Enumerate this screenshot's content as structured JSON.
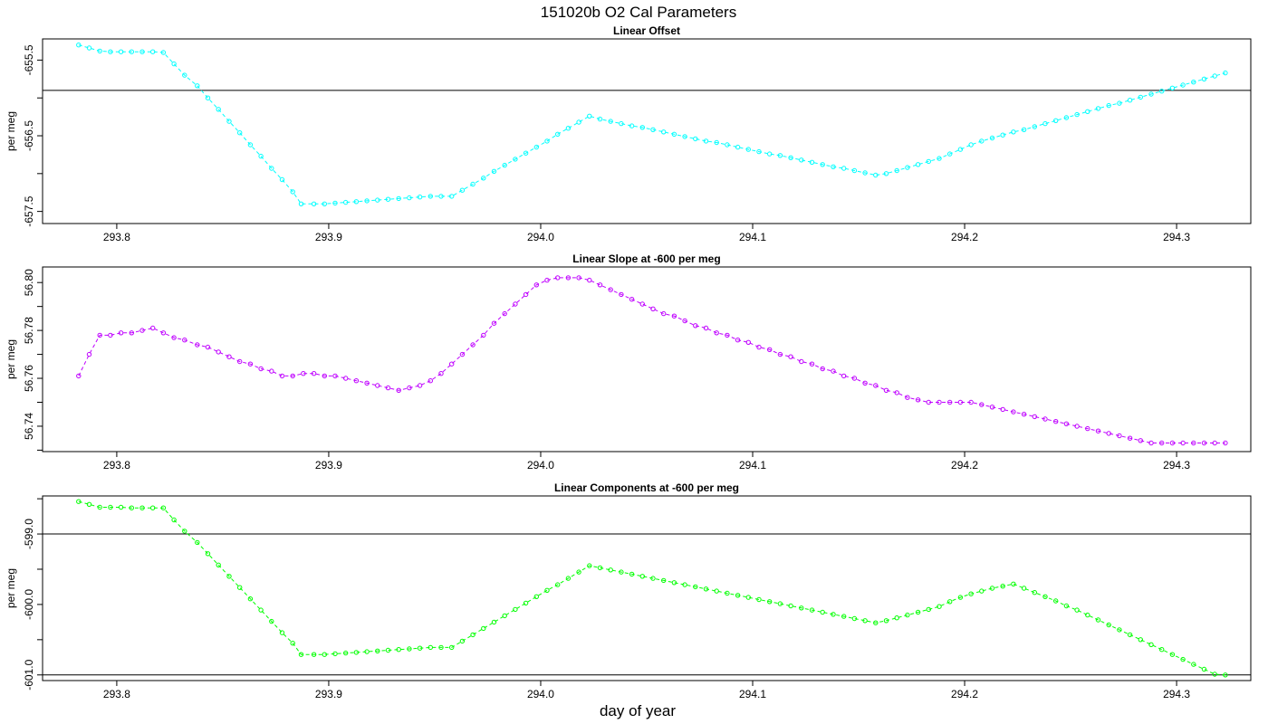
{
  "title": "151020b   O2 Cal Parameters",
  "xlabel": "day of year",
  "chart_data": [
    {
      "type": "line",
      "title": "Linear Offset",
      "ylabel": "per meg",
      "color": "#00ffff",
      "xlim": [
        293.765,
        293.335
      ],
      "ylim": [
        -657.66,
        -655.22
      ],
      "x_ticks": [
        "293.8",
        "293.9",
        "294.0",
        "294.1",
        "294.2",
        "294.3"
      ],
      "y_ticks": [
        "-655.5",
        "-656.5",
        "-657.5"
      ],
      "ref_line": -655.9,
      "series": [
        {
          "x": [
            293.782,
            293.787,
            293.792,
            293.797,
            293.802,
            293.807,
            293.812,
            293.817,
            293.822,
            293.827,
            293.832,
            293.838,
            293.843,
            293.848,
            293.853,
            293.858,
            293.863,
            293.868,
            293.873,
            293.878,
            293.883,
            293.887,
            293.893,
            293.898,
            293.903,
            293.908,
            293.913,
            293.918,
            293.923,
            293.928,
            293.933,
            293.938,
            293.943,
            293.948,
            293.953,
            293.958,
            293.963,
            293.968,
            293.973,
            293.978,
            293.983,
            293.988,
            293.993,
            293.998,
            294.003,
            294.008,
            294.013,
            294.018,
            294.023,
            294.028,
            294.033,
            294.038,
            294.043,
            294.048,
            294.053,
            294.058,
            294.063,
            294.068,
            294.073,
            294.078,
            294.083,
            294.088,
            294.093,
            294.098,
            294.103,
            294.108,
            294.113,
            294.118,
            294.123,
            294.128,
            294.133,
            294.138,
            294.143,
            294.148,
            294.153,
            294.158,
            294.163,
            294.168,
            294.173,
            294.178,
            294.183,
            294.188,
            294.193,
            294.198,
            294.203,
            294.208,
            294.213,
            294.218,
            294.223,
            294.228,
            294.233,
            294.238,
            294.243,
            294.248,
            294.253,
            294.258,
            294.263,
            294.268,
            294.273,
            294.278,
            294.283,
            294.288,
            294.293,
            294.298,
            294.303,
            294.308,
            294.313,
            294.318,
            294.323
          ],
          "y": [
            -655.3,
            -655.34,
            -655.38,
            -655.39,
            -655.39,
            -655.39,
            -655.39,
            -655.39,
            -655.4,
            -655.55,
            -655.7,
            -655.84,
            -656.0,
            -656.15,
            -656.31,
            -656.46,
            -656.62,
            -656.77,
            -656.93,
            -657.08,
            -657.24,
            -657.4,
            -657.4,
            -657.4,
            -657.39,
            -657.38,
            -657.37,
            -657.36,
            -657.35,
            -657.34,
            -657.33,
            -657.32,
            -657.31,
            -657.3,
            -657.3,
            -657.3,
            -657.22,
            -657.14,
            -657.06,
            -656.97,
            -656.89,
            -656.81,
            -656.73,
            -656.65,
            -656.57,
            -656.48,
            -656.4,
            -656.32,
            -656.24,
            -656.28,
            -656.31,
            -656.34,
            -656.37,
            -656.39,
            -656.42,
            -656.45,
            -656.48,
            -656.51,
            -656.54,
            -656.57,
            -656.59,
            -656.62,
            -656.65,
            -656.68,
            -656.71,
            -656.74,
            -656.76,
            -656.79,
            -656.82,
            -656.85,
            -656.88,
            -656.91,
            -656.93,
            -656.96,
            -656.99,
            -657.02,
            -657.0,
            -656.96,
            -656.92,
            -656.88,
            -656.84,
            -656.8,
            -656.74,
            -656.68,
            -656.62,
            -656.57,
            -656.53,
            -656.49,
            -656.45,
            -656.42,
            -656.38,
            -656.34,
            -656.3,
            -656.26,
            -656.22,
            -656.18,
            -656.14,
            -656.1,
            -656.07,
            -656.03,
            -655.99,
            -655.95,
            -655.91,
            -655.87,
            -655.83,
            -655.79,
            -655.75,
            -655.71,
            -655.67
          ]
        }
      ]
    },
    {
      "type": "line",
      "title": "Linear Slope at -600 per meg",
      "ylabel": "per meg",
      "color": "#bf00ff",
      "xlim": [
        293.765,
        294.335
      ],
      "ylim": [
        56.7294,
        56.8065
      ],
      "x_ticks": [
        "293.8",
        "293.9",
        "294.0",
        "294.1",
        "294.2",
        "294.3"
      ],
      "y_ticks": [
        "56.74",
        "56.76",
        "56.78",
        "56.80"
      ],
      "series": [
        {
          "x": [
            293.782,
            293.787,
            293.792,
            293.797,
            293.802,
            293.807,
            293.812,
            293.817,
            293.822,
            293.827,
            293.832,
            293.838,
            293.843,
            293.848,
            293.853,
            293.858,
            293.863,
            293.868,
            293.873,
            293.878,
            293.883,
            293.888,
            293.893,
            293.898,
            293.903,
            293.908,
            293.913,
            293.918,
            293.923,
            293.928,
            293.933,
            293.938,
            293.943,
            293.948,
            293.953,
            293.958,
            293.963,
            293.968,
            293.973,
            293.978,
            293.983,
            293.988,
            293.993,
            293.998,
            294.003,
            294.008,
            294.013,
            294.018,
            294.023,
            294.028,
            294.033,
            294.038,
            294.043,
            294.048,
            294.053,
            294.058,
            294.063,
            294.068,
            294.073,
            294.078,
            294.083,
            294.088,
            294.093,
            294.098,
            294.103,
            294.108,
            294.113,
            294.118,
            294.123,
            294.128,
            294.133,
            294.138,
            294.143,
            294.148,
            294.153,
            294.158,
            294.163,
            294.168,
            294.173,
            294.178,
            294.183,
            294.188,
            294.193,
            294.198,
            294.203,
            294.208,
            294.213,
            294.218,
            294.223,
            294.228,
            294.233,
            294.238,
            294.243,
            294.248,
            294.253,
            294.258,
            294.263,
            294.268,
            294.273,
            294.278,
            294.283,
            294.288,
            294.293,
            294.298,
            294.303,
            294.308,
            294.313,
            294.318,
            294.323
          ],
          "y": [
            56.761,
            56.77,
            56.778,
            56.778,
            56.779,
            56.779,
            56.78,
            56.781,
            56.779,
            56.777,
            56.776,
            56.774,
            56.773,
            56.771,
            56.769,
            56.767,
            56.766,
            56.764,
            56.763,
            56.761,
            56.761,
            56.762,
            56.762,
            56.761,
            56.761,
            56.76,
            56.759,
            56.758,
            56.757,
            56.756,
            56.755,
            56.756,
            56.757,
            56.759,
            56.762,
            56.766,
            56.77,
            56.774,
            56.778,
            56.783,
            56.787,
            56.791,
            56.795,
            56.799,
            56.801,
            56.802,
            56.802,
            56.802,
            56.801,
            56.799,
            56.797,
            56.795,
            56.793,
            56.791,
            56.789,
            56.787,
            56.786,
            56.784,
            56.782,
            56.781,
            56.779,
            56.778,
            56.776,
            56.775,
            56.773,
            56.772,
            56.77,
            56.769,
            56.767,
            56.766,
            56.764,
            56.763,
            56.761,
            56.76,
            56.758,
            56.757,
            56.755,
            56.754,
            56.752,
            56.751,
            56.75,
            56.75,
            56.75,
            56.75,
            56.75,
            56.749,
            56.748,
            56.747,
            56.746,
            56.745,
            56.744,
            56.743,
            56.742,
            56.741,
            56.74,
            56.739,
            56.738,
            56.737,
            56.736,
            56.735,
            56.734,
            56.733,
            56.733,
            56.733,
            56.733,
            56.733,
            56.733,
            56.733,
            56.733
          ]
        }
      ]
    },
    {
      "type": "line",
      "title": "Linear Components at -600 per meg",
      "ylabel": "per meg",
      "color": "#00ff00",
      "xlim": [
        293.765,
        294.335
      ],
      "ylim": [
        -601.08,
        -598.46
      ],
      "x_ticks": [
        "293.8",
        "293.9",
        "294.0",
        "294.1",
        "294.2",
        "294.3"
      ],
      "y_ticks": [
        "-599.0",
        "-600.0",
        "-601.0"
      ],
      "ref_lines": [
        -599.0,
        -601.0
      ],
      "series": [
        {
          "x": [
            293.782,
            293.787,
            293.792,
            293.797,
            293.802,
            293.807,
            293.812,
            293.817,
            293.822,
            293.827,
            293.832,
            293.838,
            293.843,
            293.848,
            293.853,
            293.858,
            293.863,
            293.868,
            293.873,
            293.878,
            293.883,
            293.887,
            293.893,
            293.898,
            293.903,
            293.908,
            293.913,
            293.918,
            293.923,
            293.928,
            293.933,
            293.938,
            293.943,
            293.948,
            293.953,
            293.958,
            293.963,
            293.968,
            293.973,
            293.978,
            293.983,
            293.988,
            293.993,
            293.998,
            294.003,
            294.008,
            294.013,
            294.018,
            294.023,
            294.028,
            294.033,
            294.038,
            294.043,
            294.048,
            294.053,
            294.058,
            294.063,
            294.068,
            294.073,
            294.078,
            294.083,
            294.088,
            294.093,
            294.098,
            294.103,
            294.108,
            294.113,
            294.118,
            294.123,
            294.128,
            294.133,
            294.138,
            294.143,
            294.148,
            294.153,
            294.158,
            294.163,
            294.168,
            294.173,
            294.178,
            294.183,
            294.188,
            294.193,
            294.198,
            294.203,
            294.208,
            294.213,
            294.218,
            294.223,
            294.228,
            294.233,
            294.238,
            294.243,
            294.248,
            294.253,
            294.258,
            294.263,
            294.268,
            294.273,
            294.278,
            294.283,
            294.288,
            294.293,
            294.298,
            294.303,
            294.308,
            294.313,
            294.318,
            294.323
          ],
          "y": [
            -598.54,
            -598.58,
            -598.62,
            -598.62,
            -598.62,
            -598.63,
            -598.63,
            -598.63,
            -598.63,
            -598.8,
            -598.96,
            -599.12,
            -599.28,
            -599.44,
            -599.6,
            -599.76,
            -599.92,
            -600.08,
            -600.24,
            -600.4,
            -600.55,
            -600.71,
            -600.71,
            -600.71,
            -600.7,
            -600.69,
            -600.68,
            -600.67,
            -600.66,
            -600.65,
            -600.64,
            -600.63,
            -600.62,
            -600.61,
            -600.61,
            -600.61,
            -600.52,
            -600.43,
            -600.34,
            -600.25,
            -600.16,
            -600.07,
            -599.98,
            -599.89,
            -599.8,
            -599.72,
            -599.63,
            -599.54,
            -599.45,
            -599.48,
            -599.51,
            -599.54,
            -599.57,
            -599.6,
            -599.63,
            -599.66,
            -599.69,
            -599.72,
            -599.75,
            -599.78,
            -599.81,
            -599.84,
            -599.87,
            -599.9,
            -599.93,
            -599.96,
            -599.99,
            -600.02,
            -600.05,
            -600.08,
            -600.11,
            -600.14,
            -600.17,
            -600.2,
            -600.23,
            -600.26,
            -600.23,
            -600.19,
            -600.15,
            -600.11,
            -600.07,
            -600.03,
            -599.96,
            -599.9,
            -599.85,
            -599.81,
            -599.77,
            -599.74,
            -599.71,
            -599.77,
            -599.83,
            -599.89,
            -599.95,
            -600.02,
            -600.08,
            -600.15,
            -600.22,
            -600.29,
            -600.36,
            -600.43,
            -600.5,
            -600.57,
            -600.64,
            -600.71,
            -600.78,
            -600.85,
            -600.92,
            -600.99,
            -601.0
          ]
        }
      ]
    }
  ]
}
